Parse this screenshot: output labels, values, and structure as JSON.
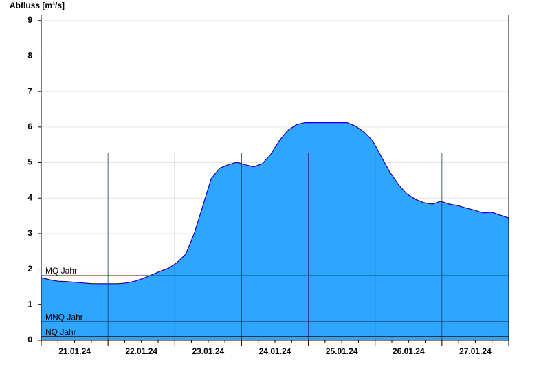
{
  "chart_data": {
    "type": "area",
    "y_axis_label": "Abfluss [m³/s]",
    "categories": [
      "21.01.24",
      "22.01.24",
      "23.01.24",
      "24.01.24",
      "25.01.24",
      "26.01.24",
      "27.01.24"
    ],
    "values": [
      [
        1.76,
        1.7,
        1.66,
        1.65,
        1.63,
        1.61,
        1.59,
        1.59
      ],
      [
        1.59,
        1.59,
        1.61,
        1.66,
        1.74,
        1.84,
        1.94,
        2.03
      ],
      [
        2.19,
        2.42,
        3.0,
        3.77,
        4.55,
        4.84,
        4.94,
        5.01
      ],
      [
        4.94,
        4.88,
        4.97,
        5.23,
        5.61,
        5.9,
        6.06,
        6.12
      ],
      [
        6.12,
        6.12,
        6.12,
        6.12,
        6.12,
        6.02,
        5.86,
        5.61
      ],
      [
        5.17,
        4.74,
        4.39,
        4.12,
        3.97,
        3.87,
        3.83,
        3.91
      ],
      [
        3.83,
        3.79,
        3.72,
        3.66,
        3.58,
        3.6,
        3.52,
        3.44
      ]
    ],
    "color": "#2ea6ff",
    "line_color": "#0000cc",
    "ylim": [
      0,
      9.15
    ],
    "yticks": [
      0,
      1,
      2,
      3,
      4,
      5,
      6,
      7,
      8,
      9
    ],
    "grid": true,
    "reference_lines": [
      {
        "label": "MQ Jahr",
        "value": 1.82,
        "color": "#008000"
      },
      {
        "label": "MNQ Jahr",
        "value": 0.52,
        "color": "#000000"
      },
      {
        "label": "NQ Jahr",
        "value": 0.1,
        "color": "#000000"
      }
    ]
  }
}
